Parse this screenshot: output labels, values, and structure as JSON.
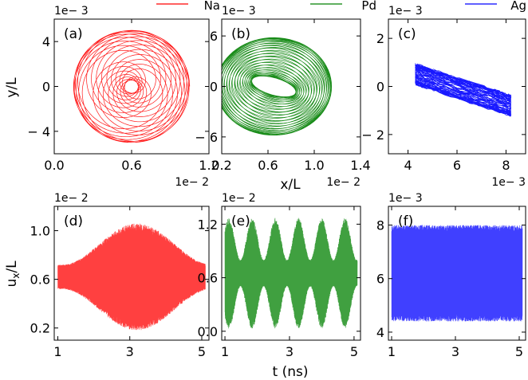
{
  "figure": {
    "legend": [
      {
        "name": "Na",
        "color": "#ff0000"
      },
      {
        "name": "Pd",
        "color": "#008000"
      },
      {
        "name": "Ag",
        "color": "#0000ff"
      }
    ]
  },
  "chart_data": [
    {
      "type": "line",
      "panel": "(a)",
      "series_name": "Na",
      "color": "#ff0000",
      "xlim": [
        0.0,
        1.2
      ],
      "ylim": [
        -6,
        6
      ],
      "xticks": [
        "0.0",
        "0.6",
        "1.2"
      ],
      "yticks": [
        "4",
        "0",
        "− 4"
      ],
      "x_multiplier": "1e− 2",
      "y_multiplier": "1e− 3",
      "ylabel": "y/L",
      "xlabel": "",
      "pattern": {
        "kind": "rosette",
        "center": [
          0.6,
          0.0
        ],
        "outer_radius": [
          0.45,
          5.0
        ],
        "inner_radius": [
          0.05,
          0.6
        ]
      }
    },
    {
      "type": "line",
      "panel": "(b)",
      "series_name": "Pd",
      "color": "#008000",
      "xlim": [
        0.2,
        1.4
      ],
      "ylim": [
        -8,
        8
      ],
      "xticks": [
        "0.2",
        "0.6",
        "1.0",
        "1.4"
      ],
      "yticks": [
        "6",
        "0",
        "− 6"
      ],
      "x_multiplier": "1e− 2",
      "y_multiplier": "1e− 3",
      "ylabel": "",
      "xlabel": "x/L",
      "pattern": {
        "kind": "ring",
        "center": [
          0.65,
          0.0
        ],
        "outer_radius": [
          0.5,
          5.8
        ],
        "inner_radius": [
          0.2,
          1.0
        ]
      }
    },
    {
      "type": "line",
      "panel": "(c)",
      "series_name": "Ag",
      "color": "#0000ff",
      "xlim": [
        3.2,
        8.8
      ],
      "ylim": [
        -2.8,
        2.8
      ],
      "xticks": [
        "4",
        "6",
        "8"
      ],
      "yticks": [
        "2",
        "0",
        "− 2"
      ],
      "x_multiplier": "1e− 3",
      "y_multiplier": "1e− 3",
      "ylabel": "",
      "xlabel": "",
      "pattern": {
        "kind": "band",
        "x_range": [
          4.3,
          8.2
        ],
        "y_start": 0.5,
        "y_end": -0.8,
        "half_width": 0.4
      }
    },
    {
      "type": "line",
      "panel": "(d)",
      "series_name": "Na",
      "color": "#ff0000",
      "xlim": [
        0.9,
        5.2
      ],
      "ylim": [
        0.1,
        1.2
      ],
      "xticks": [
        "1",
        "3",
        "5"
      ],
      "yticks": [
        "1.0",
        "0.6",
        "0.2"
      ],
      "x_multiplier": "",
      "y_multiplier": "1e− 2",
      "ylabel": "u_x/L",
      "xlabel": "",
      "oscillation": {
        "mean": 0.62,
        "envelope_min": 0.1,
        "envelope_max": 0.44,
        "beat_period_ns": 4.2,
        "beat_phase_ns": 3.2
      }
    },
    {
      "type": "line",
      "panel": "(e)",
      "series_name": "Pd",
      "color": "#008000",
      "xlim": [
        0.9,
        5.2
      ],
      "ylim": [
        -0.1,
        1.4
      ],
      "xticks": [
        "1",
        "3",
        "5"
      ],
      "yticks": [
        "1.2",
        "0.6",
        "0.0"
      ],
      "x_multiplier": "",
      "y_multiplier": "1e− 2",
      "ylabel": "",
      "xlabel": "t (ns)",
      "oscillation": {
        "mean": 0.65,
        "envelope_min": 0.15,
        "envelope_max": 0.62,
        "beat_period_ns": 0.72,
        "beat_phase_ns": 1.12
      }
    },
    {
      "type": "line",
      "panel": "(f)",
      "series_name": "Ag",
      "color": "#0000ff",
      "xlim": [
        0.9,
        5.2
      ],
      "ylim": [
        3.7,
        8.7
      ],
      "xticks": [
        "1",
        "3",
        "5"
      ],
      "yticks": [
        "8",
        "6",
        "4"
      ],
      "x_multiplier": "",
      "y_multiplier": "1e− 3",
      "ylabel": "",
      "xlabel": "",
      "oscillation": {
        "mean": 6.2,
        "envelope_min": 1.8,
        "envelope_max": 1.8,
        "beat_period_ns": 1.0,
        "beat_phase_ns": 0.0
      }
    }
  ]
}
